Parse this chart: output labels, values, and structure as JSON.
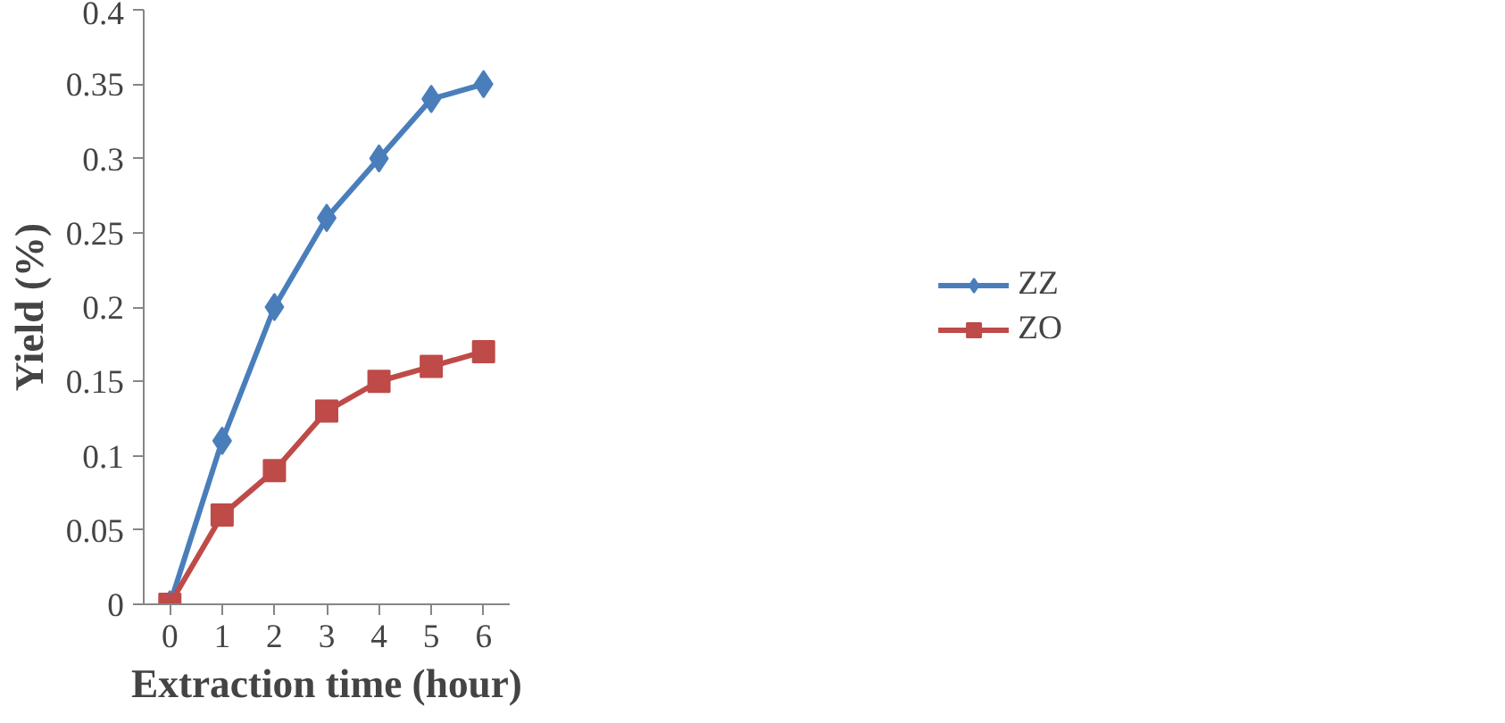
{
  "chart_data": {
    "type": "line",
    "xlabel": "Extraction time (hour)",
    "ylabel": "Yield (%)",
    "categories": [
      "0",
      "1",
      "2",
      "3",
      "4",
      "5",
      "6"
    ],
    "series": [
      {
        "name": "ZZ",
        "color": "#4a7ebb",
        "marker": "diamond",
        "values": [
          0,
          0.11,
          0.2,
          0.26,
          0.3,
          0.34,
          0.35
        ]
      },
      {
        "name": "ZO",
        "color": "#be4b48",
        "marker": "square",
        "values": [
          0,
          0.06,
          0.09,
          0.13,
          0.15,
          0.16,
          0.17
        ]
      }
    ],
    "ylim": [
      0,
      0.4
    ],
    "yticks": [
      {
        "value": 0,
        "label": "0"
      },
      0.05,
      0.1,
      0.15,
      0.2,
      0.25,
      0.3,
      0.35,
      0.4
    ],
    "grid": false,
    "legend": "right",
    "line_style": "solid"
  }
}
